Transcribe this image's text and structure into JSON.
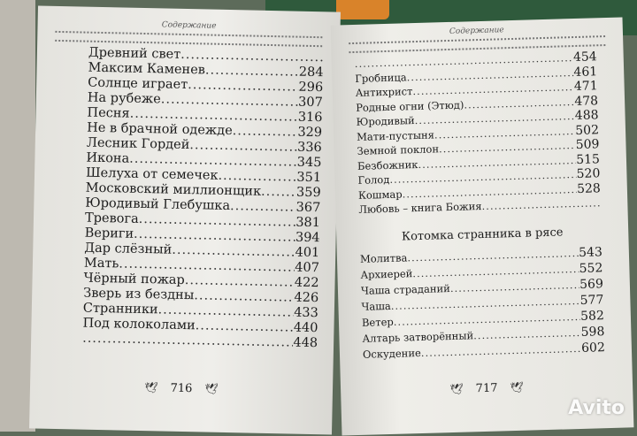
{
  "left_page": {
    "header": "Содержание",
    "entries": [
      {
        "title": "Древний свет",
        "page": ""
      },
      {
        "title": "Максим Каменев",
        "page": "284"
      },
      {
        "title": "Солнце играет",
        "page": "296"
      },
      {
        "title": "На рубеже",
        "page": "307"
      },
      {
        "title": "Песня",
        "page": "316"
      },
      {
        "title": "Не в брачной одежде",
        "page": "329"
      },
      {
        "title": "Лесник Гордей",
        "page": "336"
      },
      {
        "title": "Икона",
        "page": "345"
      },
      {
        "title": "Шелуха от семечек",
        "page": "351"
      },
      {
        "title": "Московский миллионщик",
        "page": "359"
      },
      {
        "title": "Юродивый Глебушка",
        "page": "367"
      },
      {
        "title": "Тревога",
        "page": "381"
      },
      {
        "title": "Вериги",
        "page": "394"
      },
      {
        "title": "Дар слёзный",
        "page": "401"
      },
      {
        "title": "Мать",
        "page": "407"
      },
      {
        "title": "Чёрный пожар",
        "page": "422"
      },
      {
        "title": "Зверь из бездны",
        "page": "426"
      },
      {
        "title": "Странники",
        "page": "433"
      },
      {
        "title": "Под колоколами",
        "page": "440"
      },
      {
        "title": "",
        "page": "448"
      }
    ],
    "folio": "716"
  },
  "right_page": {
    "header": "Содержание",
    "entries": [
      {
        "title": "",
        "page": "454"
      },
      {
        "title": "Гробница",
        "page": "461"
      },
      {
        "title": "Антихрист",
        "page": "471"
      },
      {
        "title": "Родные огни (Этюд)",
        "page": "478"
      },
      {
        "title": "Юродивый",
        "page": "488"
      },
      {
        "title": "Мати-пустыня",
        "page": "502"
      },
      {
        "title": "Земной поклон",
        "page": "509"
      },
      {
        "title": "Безбожник",
        "page": "515"
      },
      {
        "title": "Голод",
        "page": "520"
      },
      {
        "title": "Кошмар",
        "page": "528"
      },
      {
        "title": "Любовь – книга Божия",
        "page": ""
      }
    ],
    "section_title": "Котомка странника в рясе",
    "section_entries": [
      {
        "title": "Молитва",
        "page": "543"
      },
      {
        "title": "Архиерей",
        "page": "552"
      },
      {
        "title": "Чаша страданий",
        "page": "569"
      },
      {
        "title": "Чаша",
        "page": "577"
      },
      {
        "title": "Ветер",
        "page": "582"
      },
      {
        "title": "Алтарь затворённый",
        "page": "598"
      },
      {
        "title": "Оскудение",
        "page": "602"
      }
    ],
    "folio": "717"
  },
  "watermark": "Avito"
}
